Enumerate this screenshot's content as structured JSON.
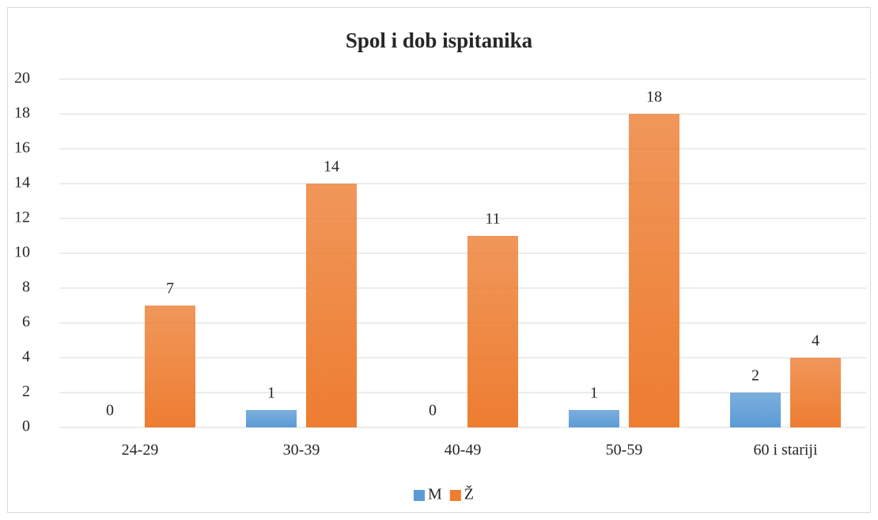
{
  "chart_data": {
    "type": "bar",
    "title": "Spol i dob ispitanika",
    "categories": [
      "24-29",
      "30-39",
      "40-49",
      "50-59",
      "60 i stariji"
    ],
    "series": [
      {
        "name": "M",
        "color": "#5b9bd5",
        "values": [
          0,
          1,
          0,
          1,
          2
        ]
      },
      {
        "name": "Ž",
        "color": "#ed7d31",
        "values": [
          7,
          14,
          11,
          18,
          4
        ]
      }
    ],
    "ylim": [
      0,
      20
    ],
    "yticks": [
      0,
      2,
      4,
      6,
      8,
      10,
      12,
      14,
      16,
      18,
      20
    ],
    "grid": true,
    "legend": "bottom"
  }
}
